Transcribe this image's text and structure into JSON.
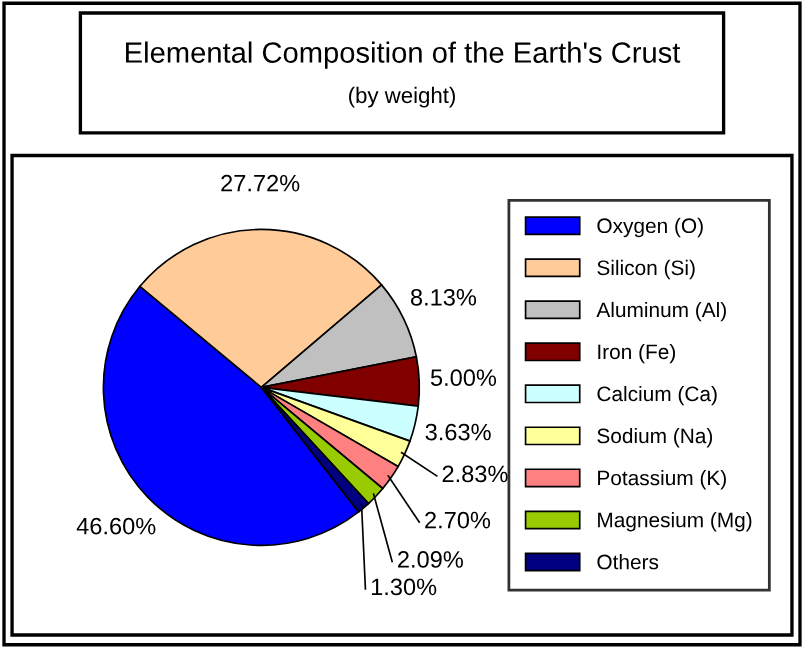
{
  "chart_data": {
    "type": "pie",
    "title": "Elemental Composition of the Earth's Crust",
    "subtitle": "(by weight)",
    "categories": [
      "Oxygen (O)",
      "Silicon (Si)",
      "Aluminum (Al)",
      "Iron (Fe)",
      "Calcium (Ca)",
      "Sodium (Na)",
      "Potassium (K)",
      "Magnesium (Mg)",
      "Others"
    ],
    "values": [
      46.6,
      27.72,
      8.13,
      5.0,
      3.63,
      2.83,
      2.7,
      2.09,
      1.3
    ],
    "value_labels": [
      "46.60%",
      "27.72%",
      "8.13%",
      "5.00%",
      "3.63%",
      "2.83%",
      "2.70%",
      "2.09%",
      "1.30%"
    ],
    "colors": [
      "#0000ff",
      "#ffcc99",
      "#c0c0c0",
      "#800000",
      "#ccffff",
      "#ffff99",
      "#ff8080",
      "#99cc00",
      "#000080"
    ],
    "legend": "right"
  }
}
